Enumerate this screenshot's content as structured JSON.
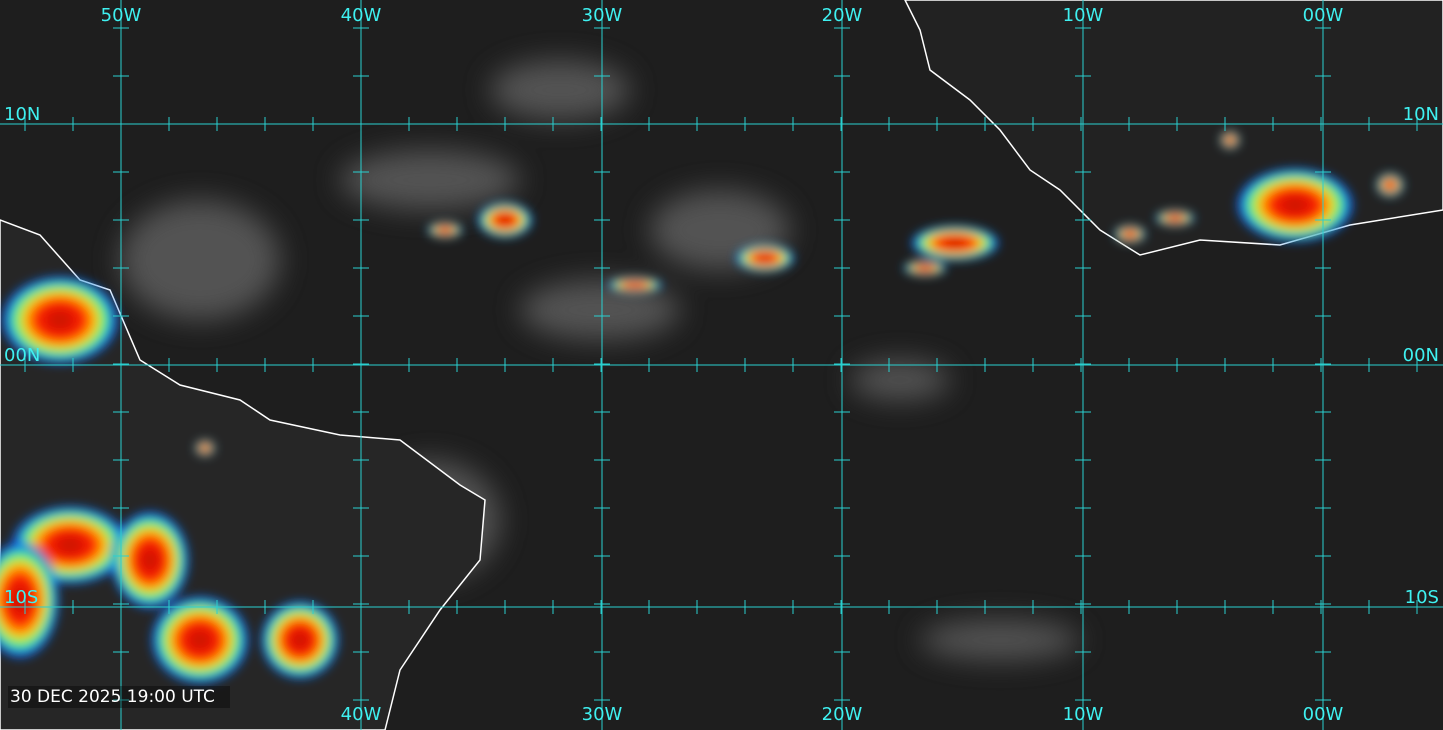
{
  "map": {
    "top_longitude_labels": [
      "50W",
      "40W",
      "30W",
      "20W",
      "10W",
      "00W"
    ],
    "bottom_longitude_labels": [
      "40W",
      "30W",
      "20W",
      "10W",
      "00W"
    ],
    "left_latitude_labels": [
      "10N",
      "00N",
      "10S"
    ],
    "right_latitude_labels": [
      "10N",
      "00N",
      "10S"
    ],
    "timestamp": "30 DEC 2025 19:00 UTC"
  }
}
